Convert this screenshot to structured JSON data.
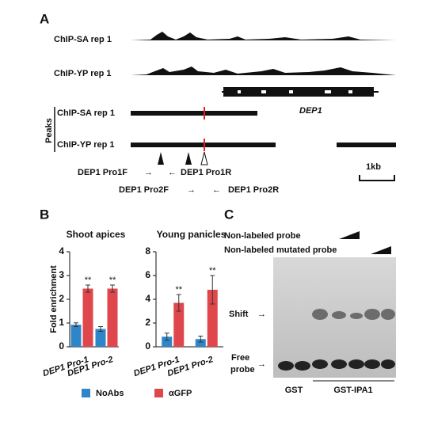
{
  "panel_a": {
    "label": "A",
    "tracks": [
      "ChIP-SA rep 1",
      "ChIP-YP rep 1"
    ],
    "gene": "DEP1",
    "peaks_label": "Peaks",
    "peak_tracks": [
      "ChIP-SA rep 1",
      "ChIP-YP rep 1"
    ],
    "primers": [
      "DEP1 Pro1F",
      "DEP1 Pro1R",
      "DEP1 Pro2F",
      "DEP1 Pro2R"
    ],
    "scale": "1kb"
  },
  "panel_b": {
    "label": "B"
  },
  "chart_data": [
    {
      "type": "bar",
      "title": "Shoot apices",
      "ylabel": "Fold enrichment",
      "categories": [
        "DEP1 Pro-1",
        "DEP1 Pro-2"
      ],
      "series": [
        {
          "name": "NoAbs",
          "color": "#2e86c8",
          "values": [
            0.93,
            0.75
          ],
          "errors": [
            0.08,
            0.1
          ]
        },
        {
          "name": "αGFP",
          "color": "#e0474c",
          "values": [
            2.45,
            2.45
          ],
          "errors": [
            0.15,
            0.15
          ],
          "significance": [
            "**",
            "**"
          ]
        }
      ],
      "ylim": [
        0,
        4
      ],
      "yticks": [
        0,
        1,
        2,
        3,
        4
      ]
    },
    {
      "type": "bar",
      "title": "Young panicles",
      "categories": [
        "DEP1 Pro-1",
        "DEP1 Pro-2"
      ],
      "series": [
        {
          "name": "NoAbs",
          "color": "#2e86c8",
          "values": [
            0.85,
            0.65
          ],
          "errors": [
            0.3,
            0.25
          ]
        },
        {
          "name": "αGFP",
          "color": "#e0474c",
          "values": [
            3.7,
            4.8
          ],
          "errors": [
            0.7,
            1.2
          ],
          "significance": [
            "**",
            "**"
          ]
        }
      ],
      "ylim": [
        0,
        8
      ],
      "yticks": [
        0,
        2,
        4,
        6,
        8
      ]
    }
  ],
  "panel_c": {
    "label": "C",
    "competitor": "Non-labeled probe",
    "mutated_competitor": "Non-labeled mutated probe",
    "shift": "Shift",
    "free_probe": [
      "Free",
      "probe"
    ],
    "lanes": [
      "GST",
      "GST-IPA1"
    ]
  }
}
